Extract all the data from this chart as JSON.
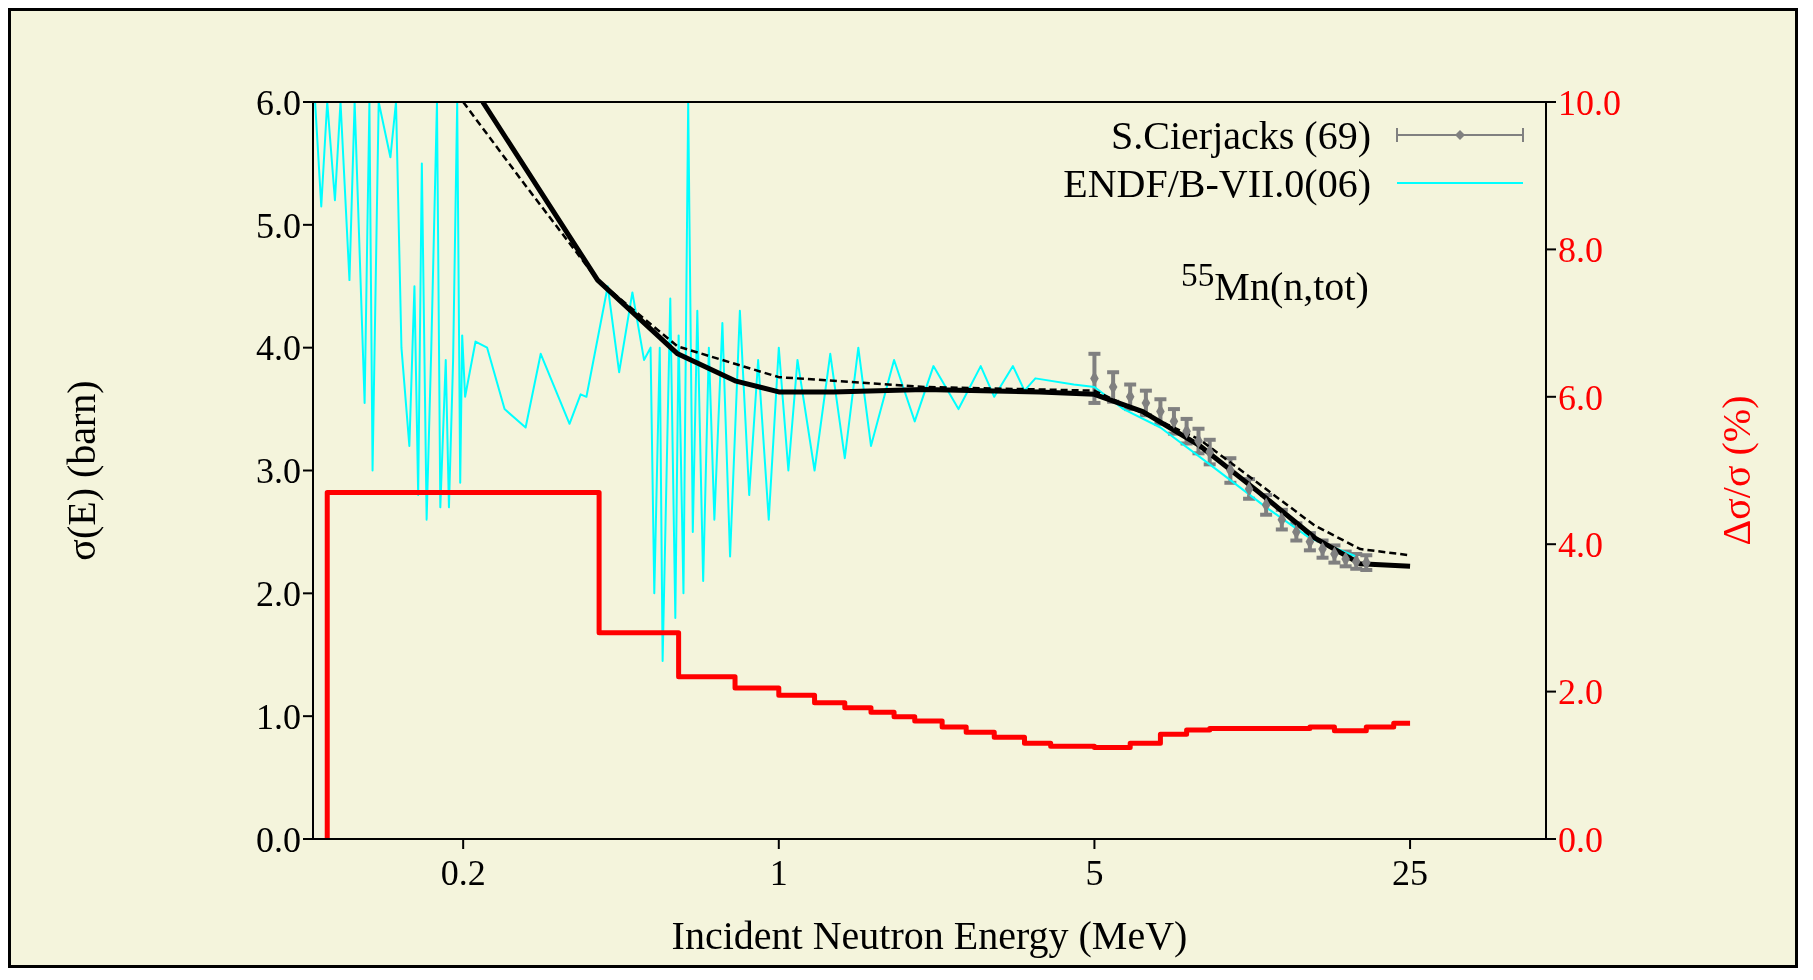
{
  "chart_data": {
    "type": "line",
    "xlabel": "Incident Neutron Energy (MeV)",
    "ylabel": "σ(E) (barn)",
    "y2label": "Δσ/σ (%)",
    "annotations": [
      "$^{55}$Mn(n,tot)"
    ],
    "log": "x",
    "legend": "top right",
    "xlim": [
      0.093,
      50
    ],
    "xticks": [
      0.2,
      1,
      5,
      25
    ],
    "ylim": [
      0,
      6
    ],
    "yticks": [
      {
        "value": 0,
        "label": "0.0"
      },
      {
        "value": 1,
        "label": "1.0"
      },
      {
        "value": 2,
        "label": "2.0"
      },
      {
        "value": 3,
        "label": "3.0"
      },
      {
        "value": 4,
        "label": "4.0"
      },
      {
        "value": 5,
        "label": "5.0"
      },
      {
        "value": 6,
        "label": "6.0"
      }
    ],
    "y2lim": [
      0,
      10
    ],
    "y2ticks": [
      {
        "value": 0,
        "label": "0.0"
      },
      {
        "value": 2,
        "label": "2.0"
      },
      {
        "value": 4,
        "label": "4.0"
      },
      {
        "value": 6,
        "label": "6.0"
      },
      {
        "value": 8,
        "label": "8.0"
      },
      {
        "value": 10,
        "label": "10.0"
      }
    ],
    "series": [
      {
        "name": "S.Cierjacks (69)",
        "type": "scatter",
        "marker": "diamond",
        "color": "#808080",
        "x": [
          5,
          5.5,
          6,
          6.5,
          7,
          7.5,
          8,
          8.5,
          9,
          10,
          11,
          12,
          13,
          14,
          15,
          16,
          17,
          18,
          19,
          20
        ],
        "values": [
          3.75,
          3.68,
          3.6,
          3.55,
          3.48,
          3.4,
          3.32,
          3.24,
          3.15,
          3.0,
          2.85,
          2.72,
          2.6,
          2.5,
          2.42,
          2.36,
          2.32,
          2.28,
          2.26,
          2.25
        ],
        "errors": [
          0.2,
          0.12,
          0.1,
          0.1,
          0.1,
          0.1,
          0.1,
          0.1,
          0.1,
          0.1,
          0.08,
          0.08,
          0.08,
          0.07,
          0.07,
          0.07,
          0.07,
          0.06,
          0.06,
          0.06
        ]
      },
      {
        "name": "ENDF/B-VII.0(06)",
        "color": "#00ffff",
        "x": [
          0.094,
          0.097,
          0.1,
          0.104,
          0.107,
          0.112,
          0.115,
          0.121,
          0.124,
          0.126,
          0.13,
          0.138,
          0.142,
          0.146,
          0.152,
          0.156,
          0.159,
          0.162,
          0.166,
          0.17,
          0.175,
          0.178,
          0.183,
          0.186,
          0.19,
          0.194,
          0.197,
          0.199,
          0.202,
          0.213,
          0.226,
          0.247,
          0.275,
          0.297,
          0.344,
          0.364,
          0.375,
          0.418,
          0.443,
          0.474,
          0.503,
          0.52,
          0.53,
          0.545,
          0.553,
          0.575,
          0.59,
          0.6,
          0.615,
          0.63,
          0.645,
          0.66,
          0.68,
          0.7,
          0.72,
          0.75,
          0.78,
          0.82,
          0.86,
          0.9,
          0.95,
          1.0,
          1.05,
          1.1,
          1.2,
          1.3,
          1.4,
          1.5,
          1.6,
          1.8,
          2.0,
          2.2,
          2.5,
          2.8,
          3.0,
          3.3,
          3.5,
          3.7,
          4.5,
          5.0,
          5.8,
          7,
          9,
          12,
          15,
          19
        ],
        "values": [
          6.0,
          5.15,
          6.0,
          5.2,
          6.0,
          4.55,
          6.0,
          3.55,
          6.0,
          3.0,
          6.0,
          5.55,
          6.0,
          4.0,
          3.2,
          4.5,
          2.8,
          5.5,
          2.6,
          4.0,
          6.0,
          2.7,
          3.9,
          2.7,
          3.9,
          6.0,
          2.9,
          4.1,
          3.6,
          4.05,
          4.0,
          3.5,
          3.35,
          3.95,
          3.38,
          3.62,
          3.6,
          4.5,
          3.8,
          4.45,
          3.9,
          4.0,
          2.0,
          4.0,
          1.45,
          4.4,
          1.8,
          4.1,
          2.0,
          6.0,
          2.5,
          4.3,
          2.1,
          4.0,
          2.6,
          4.2,
          2.3,
          4.3,
          2.8,
          3.9,
          2.6,
          4.0,
          3.0,
          3.9,
          3.0,
          3.95,
          3.1,
          4.0,
          3.2,
          3.9,
          3.4,
          3.85,
          3.5,
          3.85,
          3.6,
          3.85,
          3.65,
          3.75,
          3.7,
          3.68,
          3.5,
          3.35,
          3.05,
          2.7,
          2.45,
          2.3
        ]
      },
      {
        "color": "#000000",
        "x": [
          0.221,
          0.397,
          0.597,
          0.8,
          1,
          1.32,
          2.1,
          3.78,
          5,
          6.4,
          8.57,
          11.5,
          15.4,
          19.4,
          25
        ],
        "values": [
          6.0,
          4.55,
          3.95,
          3.73,
          3.64,
          3.64,
          3.66,
          3.64,
          3.62,
          3.48,
          3.2,
          2.83,
          2.45,
          2.24,
          2.22
        ]
      },
      {
        "line_style": "dashed",
        "color": "#000000",
        "x": [
          0.2,
          0.271,
          0.397,
          0.597,
          1,
          2.1,
          5,
          8.57,
          15.4,
          19.4,
          25
        ],
        "values": [
          6.0,
          5.35,
          4.55,
          4.01,
          3.76,
          3.68,
          3.65,
          3.25,
          2.55,
          2.36,
          2.31
        ]
      },
      {
        "type": "step",
        "axis": "y2",
        "color": "#ff0000",
        "x": [
          0.1,
          0.1,
          0.4,
          0.6,
          0.8,
          1.0,
          1.2,
          1.4,
          1.6,
          1.8,
          2.0,
          2.3,
          2.6,
          3.0,
          3.5,
          4.0,
          5.0,
          6.0,
          7.0,
          8.0,
          9,
          12,
          15,
          17,
          20,
          23,
          25
        ],
        "values": [
          0,
          4.7,
          2.8,
          2.2,
          2.05,
          1.95,
          1.85,
          1.78,
          1.72,
          1.66,
          1.6,
          1.52,
          1.45,
          1.38,
          1.3,
          1.26,
          1.24,
          1.3,
          1.42,
          1.48,
          1.5,
          1.5,
          1.52,
          1.47,
          1.52,
          1.57,
          1.57
        ]
      }
    ]
  }
}
